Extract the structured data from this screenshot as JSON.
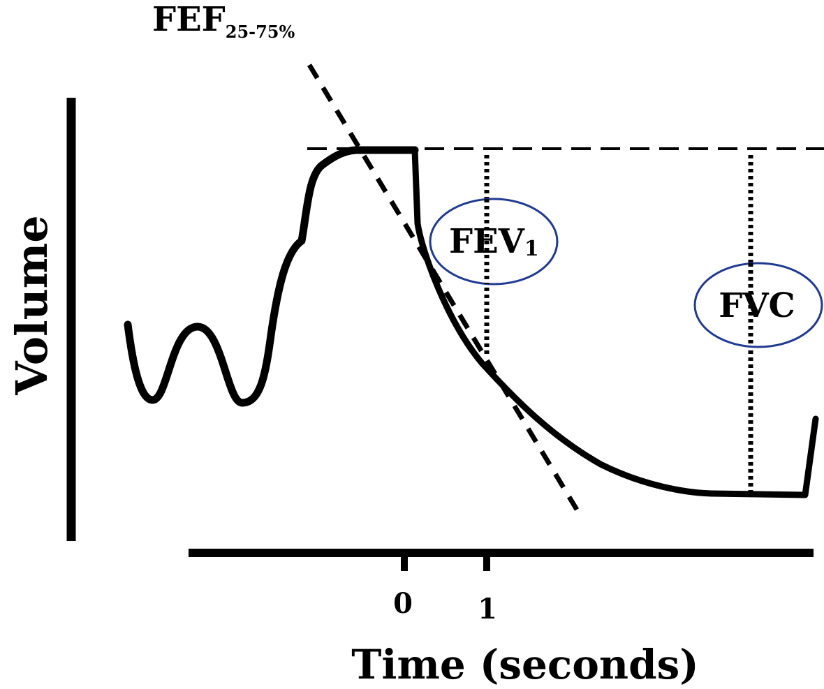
{
  "diagram": {
    "annotation_top": {
      "main": "FEF",
      "subscript": "25-75%"
    },
    "y_axis_label": "Volume",
    "x_axis_label": "Time (seconds)",
    "x_ticks": [
      "0",
      "1"
    ],
    "callouts": {
      "fev": {
        "main": "FEV",
        "subscript": "1"
      },
      "fvc": {
        "label": "FVC"
      }
    },
    "colors": {
      "ink": "#000000",
      "callout_outline": "#1f3a93"
    }
  }
}
